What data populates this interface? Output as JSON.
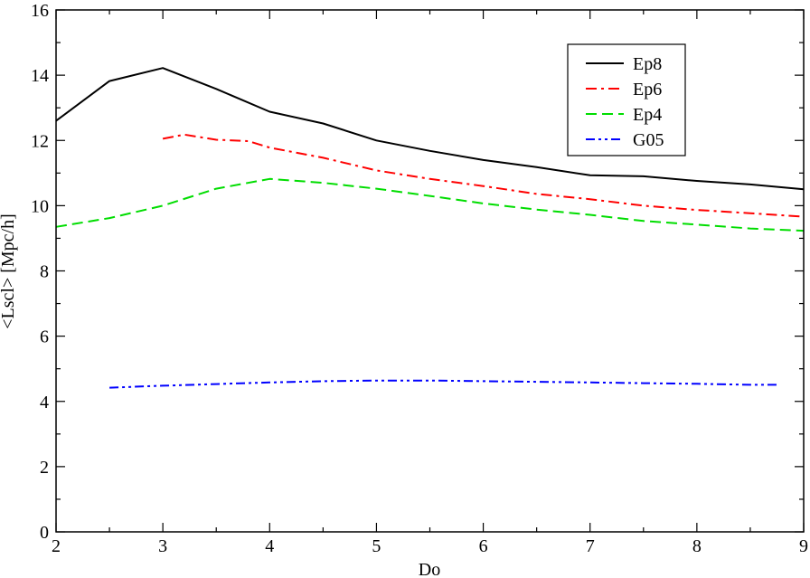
{
  "chart_data": {
    "type": "line",
    "title": "",
    "xlabel": "Do",
    "ylabel": "<Lscl> [Mpc/h]",
    "xlim": [
      2,
      9
    ],
    "ylim": [
      0,
      16
    ],
    "xticks": [
      2,
      3,
      4,
      5,
      6,
      7,
      8,
      9
    ],
    "yticks": [
      0,
      2,
      4,
      6,
      8,
      10,
      12,
      14,
      16
    ],
    "grid": false,
    "legend_position": "top-right",
    "series": [
      {
        "name": "Ep8",
        "color": "#000000",
        "dash": "solid",
        "x": [
          2.0,
          2.5,
          3.0,
          3.5,
          4.0,
          4.5,
          5.0,
          5.5,
          6.0,
          6.5,
          7.0,
          7.5,
          8.0,
          8.5,
          9.0
        ],
        "y": [
          12.6,
          13.82,
          14.22,
          13.58,
          12.88,
          12.52,
          12.0,
          11.68,
          11.4,
          11.18,
          10.93,
          10.9,
          10.76,
          10.65,
          10.5
        ]
      },
      {
        "name": "Ep6",
        "color": "#ff0000",
        "dash": "dashdot",
        "x": [
          3.0,
          3.2,
          3.5,
          3.8,
          4.0,
          4.5,
          5.0,
          5.5,
          6.0,
          6.5,
          7.0,
          7.5,
          8.0,
          8.5,
          9.0
        ],
        "y": [
          12.05,
          12.18,
          12.02,
          11.98,
          11.78,
          11.47,
          11.08,
          10.82,
          10.6,
          10.36,
          10.2,
          10.0,
          9.87,
          9.77,
          9.66
        ]
      },
      {
        "name": "Ep4",
        "color": "#00dd00",
        "dash": "dashed",
        "x": [
          2.0,
          2.5,
          3.0,
          3.5,
          4.0,
          4.5,
          5.0,
          5.5,
          6.0,
          6.5,
          7.0,
          7.5,
          8.0,
          8.5,
          9.0
        ],
        "y": [
          9.35,
          9.62,
          10.0,
          10.52,
          10.82,
          10.7,
          10.52,
          10.3,
          10.07,
          9.88,
          9.72,
          9.53,
          9.42,
          9.3,
          9.23
        ]
      },
      {
        "name": "G05",
        "color": "#0000ff",
        "dash": "dashdotdot",
        "x": [
          2.5,
          3.0,
          3.5,
          4.0,
          4.5,
          5.0,
          5.5,
          6.0,
          6.5,
          7.0,
          7.5,
          8.0,
          8.5,
          8.75
        ],
        "y": [
          4.42,
          4.48,
          4.53,
          4.58,
          4.62,
          4.64,
          4.64,
          4.62,
          4.6,
          4.58,
          4.56,
          4.54,
          4.51,
          4.51
        ]
      }
    ]
  }
}
